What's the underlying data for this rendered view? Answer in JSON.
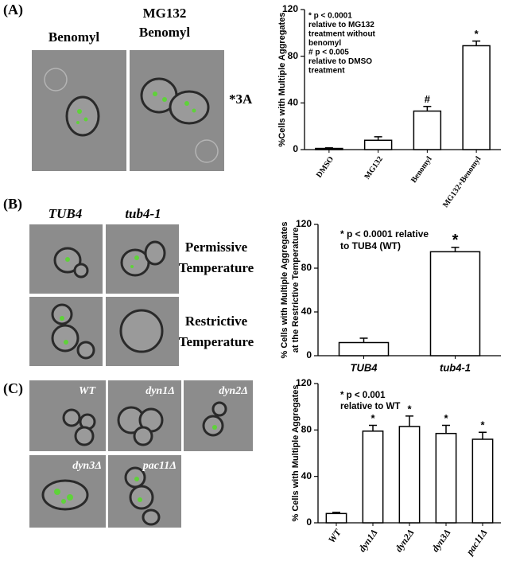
{
  "panels": [
    {
      "label": "(A)",
      "captions": [
        "Benomyl",
        "MG132",
        "Benomyl"
      ],
      "note": "*3A"
    },
    {
      "label": "(B)",
      "columns": [
        "TUB4",
        "tub4-1"
      ],
      "rows": [
        [
          "Permissive",
          "Temperature"
        ],
        [
          "Restrictive",
          "Temperature"
        ]
      ]
    },
    {
      "label": "(C)",
      "tags": [
        "WT",
        "dyn1Δ",
        "dyn2Δ",
        "dyn3Δ",
        "pac11Δ"
      ]
    }
  ],
  "chart_data": [
    {
      "type": "bar",
      "ylabel": [
        "%Cells with Multiple Aggregates"
      ],
      "categories": [
        "DMSO",
        "MG132",
        "Benomyl",
        "MG132+Benomyl"
      ],
      "values": [
        1,
        8,
        33,
        89
      ],
      "errors": [
        0.5,
        3,
        4,
        4
      ],
      "markers": [
        null,
        null,
        "#",
        "*"
      ],
      "ylim": [
        0,
        120
      ],
      "yticks": [
        0,
        40,
        80,
        120
      ],
      "annotation": [
        "* p < 0.0001",
        "relative to MG132",
        "treatment without",
        "benomyl",
        "# p < 0.005",
        "relative to DMSO",
        "treatment"
      ]
    },
    {
      "type": "bar",
      "ylabel": [
        "% Cells with Multiple Aggregates",
        "at the Restrictive Temperature"
      ],
      "categories": [
        "TUB4",
        "tub4-1"
      ],
      "values": [
        12,
        95
      ],
      "errors": [
        4,
        4
      ],
      "markers": [
        null,
        "*"
      ],
      "ylim": [
        0,
        120
      ],
      "yticks": [
        0,
        40,
        80,
        120
      ],
      "annotation": [
        "* p < 0.0001 relative",
        "to TUB4 (WT)"
      ]
    },
    {
      "type": "bar",
      "ylabel": [
        "% Cells with Multiple Aggregates"
      ],
      "categories": [
        "WT",
        "dyn1Δ",
        "dyn2Δ",
        "dyn3Δ",
        "pac11Δ"
      ],
      "values": [
        8,
        79,
        83,
        77,
        72
      ],
      "errors": [
        1,
        5,
        9,
        7,
        6
      ],
      "markers": [
        null,
        "*",
        "*",
        "*",
        "*"
      ],
      "ylim": [
        0,
        120
      ],
      "yticks": [
        0,
        40,
        80,
        120
      ],
      "annotation": [
        "* p < 0.001",
        "relative to WT"
      ]
    }
  ]
}
